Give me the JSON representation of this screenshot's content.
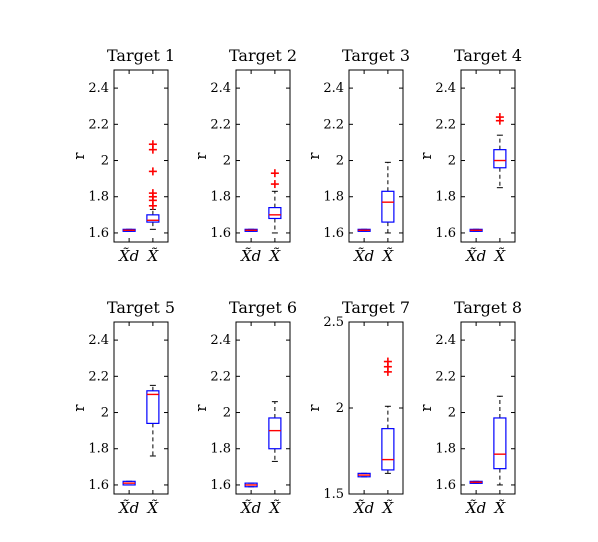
{
  "chart_data": [
    {
      "type": "box",
      "title": "Target 1",
      "ylabel": "r",
      "ylim": [
        1.55,
        2.5
      ],
      "yticks": [
        "1.6",
        "1.8",
        "2",
        "2.2",
        "2.4"
      ],
      "categories": [
        "X̃d",
        "X̃"
      ],
      "boxes": [
        {
          "whisker_low": 1.61,
          "q1": 1.61,
          "median": 1.615,
          "q3": 1.62,
          "whisker_high": 1.62,
          "outliers": []
        },
        {
          "whisker_low": 1.62,
          "q1": 1.66,
          "median": 1.67,
          "q3": 1.7,
          "whisker_high": 1.73,
          "outliers": [
            1.75,
            1.78,
            1.8,
            1.82,
            1.94,
            2.06,
            2.09
          ]
        }
      ]
    },
    {
      "type": "box",
      "title": "Target 2",
      "ylabel": "r",
      "ylim": [
        1.55,
        2.5
      ],
      "yticks": [
        "1.6",
        "1.8",
        "2",
        "2.2",
        "2.4"
      ],
      "categories": [
        "X̃d",
        "X̃"
      ],
      "boxes": [
        {
          "whisker_low": 1.61,
          "q1": 1.61,
          "median": 1.615,
          "q3": 1.62,
          "whisker_high": 1.62,
          "outliers": []
        },
        {
          "whisker_low": 1.6,
          "q1": 1.68,
          "median": 1.7,
          "q3": 1.74,
          "whisker_high": 1.83,
          "outliers": [
            1.87,
            1.93
          ]
        }
      ]
    },
    {
      "type": "box",
      "title": "Target 3",
      "ylabel": "r",
      "ylim": [
        1.55,
        2.5
      ],
      "yticks": [
        "1.6",
        "1.8",
        "2",
        "2.2",
        "2.4"
      ],
      "categories": [
        "X̃d",
        "X̃"
      ],
      "boxes": [
        {
          "whisker_low": 1.61,
          "q1": 1.61,
          "median": 1.615,
          "q3": 1.62,
          "whisker_high": 1.62,
          "outliers": []
        },
        {
          "whisker_low": 1.6,
          "q1": 1.66,
          "median": 1.77,
          "q3": 1.83,
          "whisker_high": 1.99,
          "outliers": []
        }
      ]
    },
    {
      "type": "box",
      "title": "Target 4",
      "ylabel": "r",
      "ylim": [
        1.55,
        2.5
      ],
      "yticks": [
        "1.6",
        "1.8",
        "2",
        "2.2",
        "2.4"
      ],
      "categories": [
        "X̃d",
        "X̃"
      ],
      "boxes": [
        {
          "whisker_low": 1.61,
          "q1": 1.61,
          "median": 1.615,
          "q3": 1.62,
          "whisker_high": 1.62,
          "outliers": []
        },
        {
          "whisker_low": 1.85,
          "q1": 1.96,
          "median": 2.0,
          "q3": 2.06,
          "whisker_high": 2.14,
          "outliers": [
            2.22,
            2.24
          ]
        }
      ]
    },
    {
      "type": "box",
      "title": "Target 5",
      "ylabel": "r",
      "ylim": [
        1.55,
        2.5
      ],
      "yticks": [
        "1.6",
        "1.8",
        "2",
        "2.2",
        "2.4"
      ],
      "categories": [
        "X̃d",
        "X̃"
      ],
      "boxes": [
        {
          "whisker_low": 1.6,
          "q1": 1.6,
          "median": 1.61,
          "q3": 1.62,
          "whisker_high": 1.62,
          "outliers": []
        },
        {
          "whisker_low": 1.76,
          "q1": 1.94,
          "median": 2.1,
          "q3": 2.12,
          "whisker_high": 2.15,
          "outliers": []
        }
      ]
    },
    {
      "type": "box",
      "title": "Target 6",
      "ylabel": "r",
      "ylim": [
        1.55,
        2.5
      ],
      "yticks": [
        "1.6",
        "1.8",
        "2",
        "2.2",
        "2.4"
      ],
      "categories": [
        "X̃d",
        "X̃"
      ],
      "boxes": [
        {
          "whisker_low": 1.59,
          "q1": 1.59,
          "median": 1.6,
          "q3": 1.61,
          "whisker_high": 1.61,
          "outliers": []
        },
        {
          "whisker_low": 1.73,
          "q1": 1.8,
          "median": 1.9,
          "q3": 1.97,
          "whisker_high": 2.06,
          "outliers": []
        }
      ]
    },
    {
      "type": "box",
      "title": "Target 7",
      "ylabel": "r",
      "ylim": [
        1.5,
        2.5
      ],
      "yticks": [
        "1.5",
        "2",
        "2.5"
      ],
      "categories": [
        "X̃d",
        "X̃"
      ],
      "boxes": [
        {
          "whisker_low": 1.6,
          "q1": 1.6,
          "median": 1.61,
          "q3": 1.62,
          "whisker_high": 1.62,
          "outliers": []
        },
        {
          "whisker_low": 1.62,
          "q1": 1.64,
          "median": 1.7,
          "q3": 1.88,
          "whisker_high": 2.01,
          "outliers": [
            2.21,
            2.24,
            2.27
          ]
        }
      ]
    },
    {
      "type": "box",
      "title": "Target 8",
      "ylabel": "r",
      "ylim": [
        1.55,
        2.5
      ],
      "yticks": [
        "1.6",
        "1.8",
        "2",
        "2.2",
        "2.4"
      ],
      "categories": [
        "X̃d",
        "X̃"
      ],
      "boxes": [
        {
          "whisker_low": 1.61,
          "q1": 1.61,
          "median": 1.615,
          "q3": 1.62,
          "whisker_high": 1.62,
          "outliers": []
        },
        {
          "whisker_low": 1.6,
          "q1": 1.69,
          "median": 1.77,
          "q3": 1.97,
          "whisker_high": 2.09,
          "outliers": []
        }
      ]
    }
  ],
  "colors": {
    "box": "#0000ff",
    "median": "#ff0000",
    "outlier": "#ff0000",
    "whisker": "#000000",
    "axes": "#000000"
  }
}
